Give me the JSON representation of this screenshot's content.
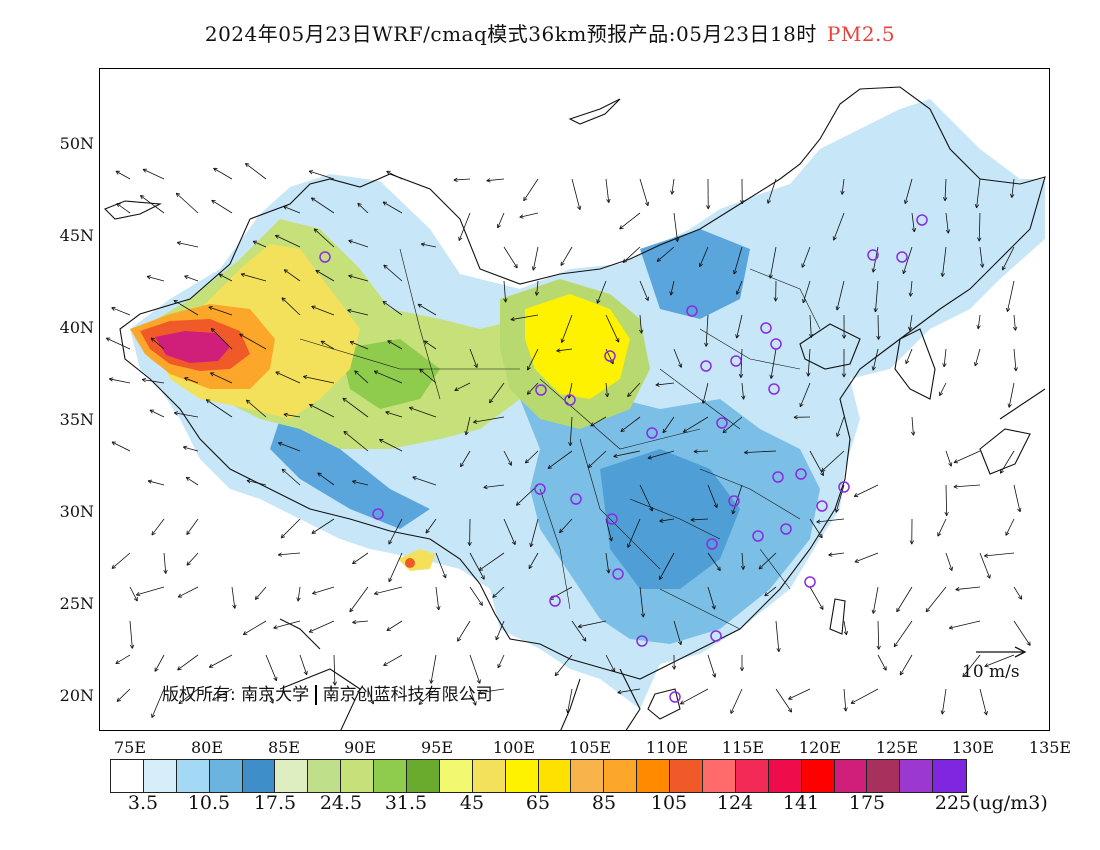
{
  "title": {
    "text": "2024年05月23日WRF/cmaq模式36km预报产品:05月23日18时",
    "variable": "PM2.5",
    "variable_color": "#e8423a"
  },
  "map": {
    "lon_range": [
      73,
      135
    ],
    "lat_range": [
      18,
      54
    ],
    "lat_labels": [
      "50N",
      "45N",
      "40N",
      "35N",
      "30N",
      "25N",
      "20N"
    ],
    "lon_labels": [
      "75E",
      "80E",
      "85E",
      "90E",
      "95E",
      "100E",
      "105E",
      "110E",
      "115E",
      "120E",
      "125E",
      "130E",
      "135E"
    ],
    "credit": [
      "版权所有: 南京大学",
      "南京创蓝科技有限公司"
    ],
    "wind_reference": "10 m/s",
    "station_marker_color": "#8a2be2"
  },
  "legend": {
    "colors": [
      "#ffffff",
      "#d6eefa",
      "#a3d9f5",
      "#6cb4e0",
      "#3e8ec9",
      "#dfeec0",
      "#c0df8a",
      "#c6e07a",
      "#8fcb4c",
      "#6aab2e",
      "#f2f96e",
      "#f4e15b",
      "#fff200",
      "#ffe100",
      "#f8b44a",
      "#fca729",
      "#ff8a00",
      "#f05a28",
      "#ff6a6a",
      "#f22a55",
      "#ef0c4a",
      "#ff0000",
      "#d01e7b",
      "#a8305d",
      "#9a38d0",
      "#8126e0"
    ],
    "labels": [
      "3.5",
      "10.5",
      "17.5",
      "24.5",
      "31.5",
      "45",
      "65",
      "85",
      "105",
      "124",
      "141",
      "175",
      "225"
    ],
    "unit": "(ug/m3)"
  }
}
